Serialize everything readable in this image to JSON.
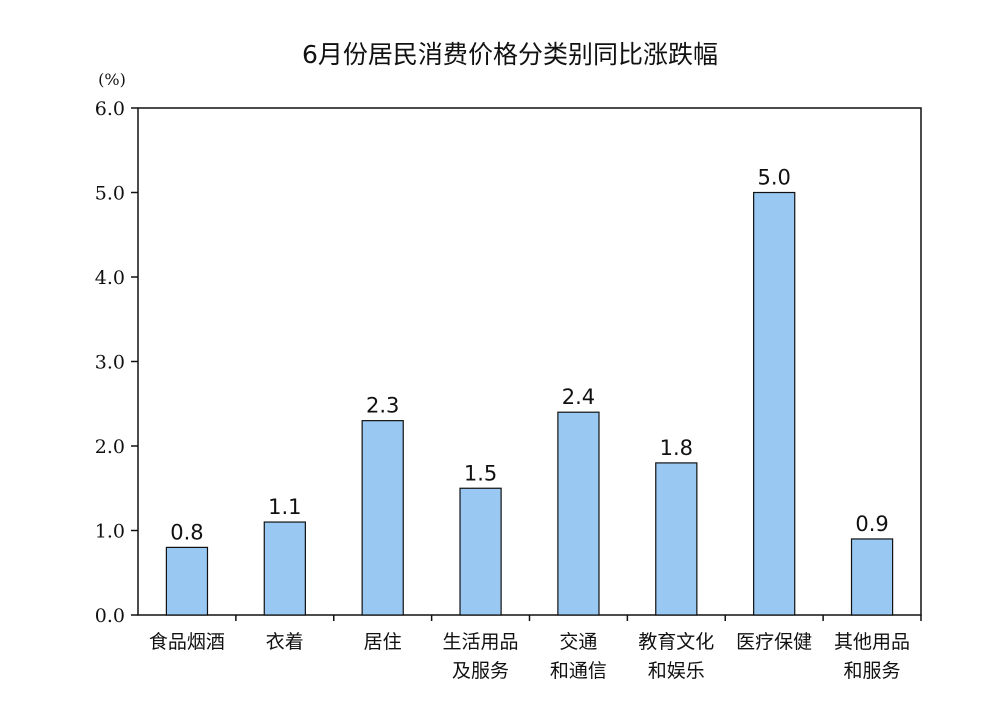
{
  "chart_data": {
    "type": "bar",
    "title": "6月份居民消费价格分类别同比涨跌幅",
    "ylabel": "(%)",
    "xlabel": "",
    "ylim": [
      0,
      6
    ],
    "yticks": [
      "0.0",
      "1.0",
      "2.0",
      "3.0",
      "4.0",
      "5.0",
      "6.0"
    ],
    "categories": [
      [
        "食品烟酒"
      ],
      [
        "衣着"
      ],
      [
        "居住"
      ],
      [
        "生活用品",
        "及服务"
      ],
      [
        "交通",
        "和通信"
      ],
      [
        "教育文化",
        "和娱乐"
      ],
      [
        "医疗保健"
      ],
      [
        "其他用品",
        "和服务"
      ]
    ],
    "values": [
      0.8,
      1.1,
      2.3,
      1.5,
      2.4,
      1.8,
      5.0,
      0.9
    ],
    "data_labels": [
      "0.8",
      "1.1",
      "2.3",
      "1.5",
      "2.4",
      "1.8",
      "5.0",
      "0.9"
    ],
    "bar_color": "#99c8f2",
    "bar_edge_color": "#111111",
    "grid": false,
    "legend": "none"
  }
}
